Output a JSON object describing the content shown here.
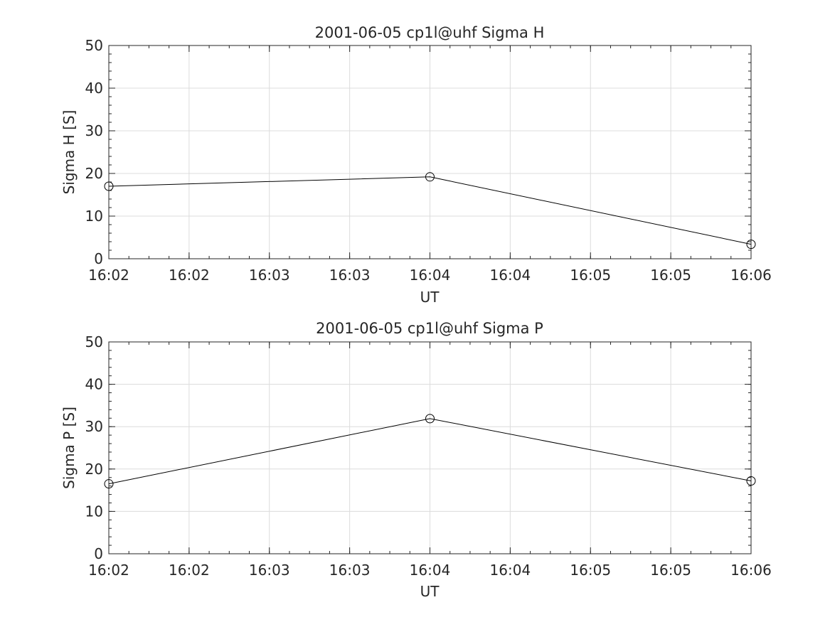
{
  "chart_data": [
    {
      "type": "line",
      "title": "2001-06-05  cp1l@uhf Sigma H",
      "xlabel": "UT",
      "ylabel": "Sigma H [S]",
      "x_tick_labels": [
        "16:02",
        "16:02",
        "16:03",
        "16:03",
        "16:04",
        "16:04",
        "16:05",
        "16:05",
        "16:06"
      ],
      "y_ticks": [
        0,
        10,
        20,
        30,
        40,
        50
      ],
      "xlim": [
        "16:02",
        "16:06"
      ],
      "ylim": [
        0,
        50
      ],
      "grid": true,
      "marker": "circle",
      "color": "#000000",
      "series": [
        {
          "x": [
            "16:02",
            "16:04",
            "16:06"
          ],
          "values": [
            17.0,
            19.2,
            3.4
          ]
        }
      ]
    },
    {
      "type": "line",
      "title": "2001-06-05  cp1l@uhf Sigma P",
      "xlabel": "UT",
      "ylabel": "Sigma P [S]",
      "x_tick_labels": [
        "16:02",
        "16:02",
        "16:03",
        "16:03",
        "16:04",
        "16:04",
        "16:05",
        "16:05",
        "16:06"
      ],
      "y_ticks": [
        0,
        10,
        20,
        30,
        40,
        50
      ],
      "xlim": [
        "16:02",
        "16:06"
      ],
      "ylim": [
        0,
        50
      ],
      "grid": true,
      "marker": "circle",
      "color": "#000000",
      "series": [
        {
          "x": [
            "16:02",
            "16:04",
            "16:06"
          ],
          "values": [
            16.5,
            31.9,
            17.2
          ]
        }
      ]
    }
  ]
}
